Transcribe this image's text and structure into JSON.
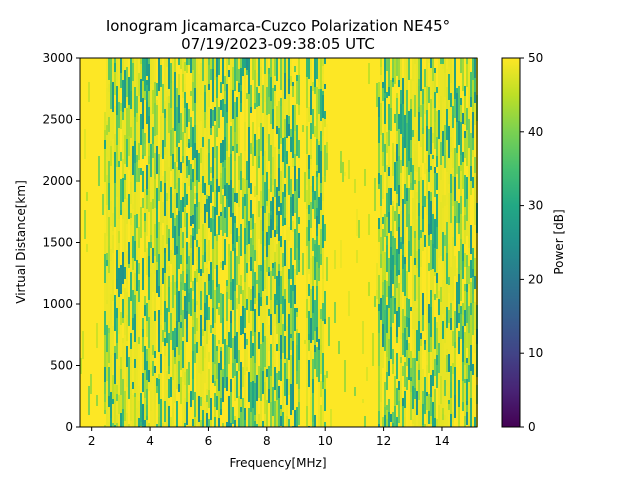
{
  "chart_data": {
    "type": "heatmap",
    "title_line1": "Ionogram Jicamarca-Cuzco Polarization NE45°",
    "title_line2": "07/19/2023-09:38:05 UTC",
    "xlabel": "Frequency[MHz]",
    "ylabel": "Virtual Distance[km]",
    "colorbar_label": "Power [dB]",
    "colormap": "viridis",
    "xlim": [
      1.6,
      15.2
    ],
    "ylim": [
      0,
      3000
    ],
    "clim": [
      0,
      50
    ],
    "x_ticks": [
      2,
      4,
      6,
      8,
      10,
      12,
      14
    ],
    "x_tick_labels": [
      "2",
      "4",
      "6",
      "8",
      "10",
      "12",
      "14"
    ],
    "y_ticks": [
      0,
      500,
      1000,
      1500,
      2000,
      2500,
      3000
    ],
    "y_tick_labels": [
      "0",
      "500",
      "1000",
      "1500",
      "2000",
      "2500",
      "3000"
    ],
    "colorbar_ticks": [
      0,
      10,
      20,
      30,
      40,
      50
    ],
    "colorbar_tick_labels": [
      "0",
      "10",
      "20",
      "30",
      "40",
      "50"
    ],
    "saturated_bands_mhz": [
      [
        1.6,
        2.4
      ],
      [
        9.1,
        9.3
      ],
      [
        10.0,
        11.8
      ]
    ],
    "typical_power_db": [
      25,
      50
    ]
  }
}
